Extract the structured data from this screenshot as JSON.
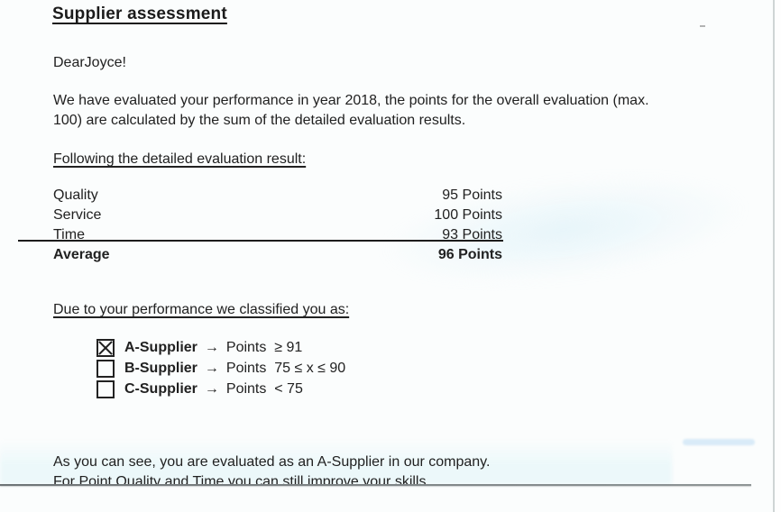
{
  "doc": {
    "title": "Supplier assessment",
    "salutation": "DearJoyce!",
    "intro": {
      "line1": "We have evaluated your performance in year 2018, the points for the overall evaluation (max.",
      "line2": "100) are calculated by the sum of the detailed evaluation results."
    },
    "results_heading": "Following the detailed evaluation result:",
    "results": [
      {
        "label": "Quality",
        "points": "95 Points"
      },
      {
        "label": "Service",
        "points": "100 Points"
      },
      {
        "label": "Time",
        "points": "93 Points"
      },
      {
        "label": "Average",
        "points": "96 Points"
      }
    ],
    "classification_heading": "Due to your performance we classified you as:",
    "classifications": [
      {
        "label": "A-Supplier",
        "arrow": "→",
        "condition": "Points  ≥ 91",
        "checked": true
      },
      {
        "label": "B-Supplier",
        "arrow": "→",
        "condition": "Points  75 ≤ x ≤ 90",
        "checked": false
      },
      {
        "label": "C-Supplier",
        "arrow": "→",
        "condition": "Points  < 75",
        "checked": false
      }
    ],
    "closing": {
      "line1": "As you can see, you are evaluated as an A-Supplier in our company.",
      "line2": "For Point Quality and Time you can still improve your skills"
    }
  }
}
